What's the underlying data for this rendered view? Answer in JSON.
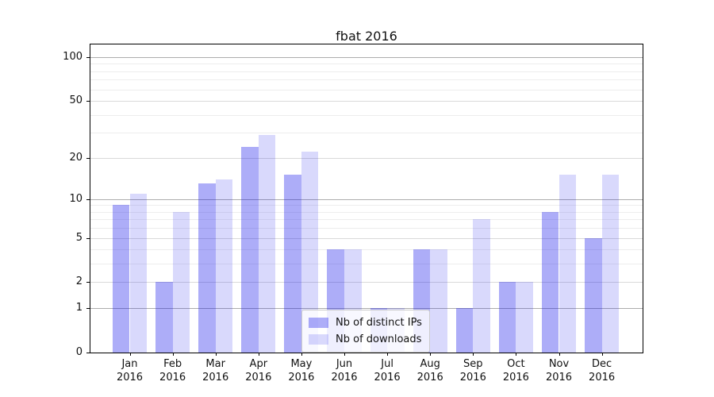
{
  "title": "fbat 2016",
  "chart_data": {
    "type": "bar",
    "title": "fbat 2016",
    "categories": [
      "Jan 2016",
      "Feb 2016",
      "Mar 2016",
      "Apr 2016",
      "May 2016",
      "Jun 2016",
      "Jul 2016",
      "Aug 2016",
      "Sep 2016",
      "Oct 2016",
      "Nov 2016",
      "Dec 2016"
    ],
    "series": [
      {
        "name": "Nb of distinct IPs",
        "color": "rgba(20,20,235,0.35)",
        "values": [
          9,
          2,
          13,
          24,
          15,
          4,
          1,
          4,
          1,
          2,
          8,
          5
        ]
      },
      {
        "name": "Nb of downloads",
        "color": "rgba(20,20,235,0.16)",
        "values": [
          11,
          8,
          14,
          29,
          22,
          4,
          1,
          4,
          7,
          2,
          15,
          15
        ]
      }
    ],
    "xlabel": "",
    "ylabel": "",
    "y_scale": "log1p",
    "y_ticks": [
      0,
      1,
      2,
      5,
      10,
      20,
      50,
      100
    ],
    "y_minor_ticks": [
      3,
      4,
      6,
      7,
      8,
      9,
      30,
      40,
      60,
      70,
      80,
      90
    ],
    "ylim": [
      0,
      122
    ],
    "grid": {
      "on": true,
      "decade_ticks": [
        1,
        10,
        100
      ],
      "decade_color": "#adadad",
      "labeled_color": "#d9d9d9",
      "minor_color": "#ededed"
    },
    "legend": {
      "position": "lower center"
    },
    "axes_color": "#000000",
    "background": "#ffffff"
  }
}
